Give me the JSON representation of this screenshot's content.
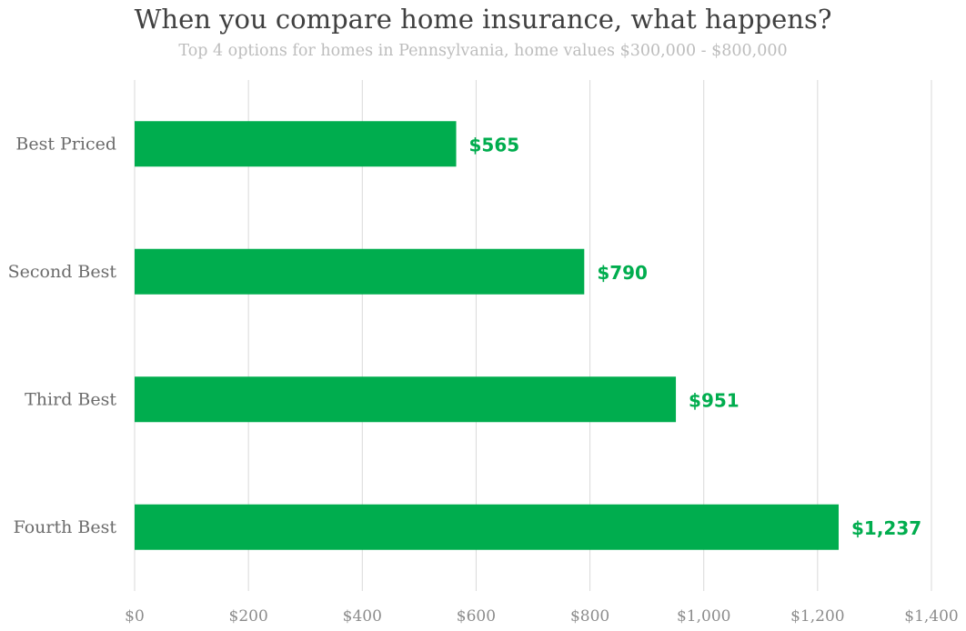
{
  "chart_data": {
    "type": "bar",
    "orientation": "horizontal",
    "title": "When you compare home insurance, what happens?",
    "subtitle": "Top 4 options for homes in Pennsylvania, home values $300,000 - $800,000",
    "categories": [
      "Best Priced",
      "Second Best",
      "Third Best",
      "Fourth Best"
    ],
    "values": [
      565,
      790,
      951,
      1237
    ],
    "data_labels": [
      "$565",
      "$790",
      "$951",
      "$1,237"
    ],
    "xlim": [
      0,
      1400
    ],
    "x_ticks": [
      0,
      200,
      400,
      600,
      800,
      1000,
      1200,
      1400
    ],
    "x_tick_labels": [
      "$0",
      "$200",
      "$400",
      "$600",
      "$800",
      "$1,000",
      "$1,200",
      "$1,400"
    ],
    "grid": true,
    "legend": "none",
    "colors": {
      "bar": "#00ad4e",
      "data_label": "#00ad4e"
    }
  }
}
